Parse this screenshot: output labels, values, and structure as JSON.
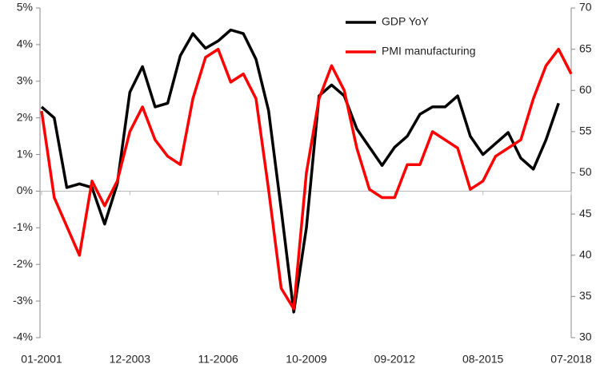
{
  "chart_data": {
    "type": "line",
    "categories": [
      "01-2001",
      null,
      null,
      null,
      null,
      null,
      null,
      "12-2003",
      null,
      null,
      null,
      null,
      null,
      null,
      "11-2006",
      null,
      null,
      null,
      null,
      null,
      null,
      "10-2009",
      null,
      null,
      null,
      null,
      null,
      null,
      "09-2012",
      null,
      null,
      null,
      null,
      null,
      null,
      "08-2015",
      null,
      null,
      null,
      null,
      null,
      null,
      "07-2018"
    ],
    "series": [
      {
        "name": "GDP YoY",
        "color": "#000000",
        "axis": "y",
        "values": [
          2.3,
          2.0,
          0.1,
          0.2,
          0.1,
          -0.9,
          0.2,
          2.7,
          3.4,
          2.3,
          2.4,
          3.7,
          4.3,
          3.9,
          4.1,
          4.4,
          4.3,
          3.6,
          2.2,
          -0.5,
          -3.3,
          -1.0,
          2.6,
          2.9,
          2.6,
          1.7,
          1.2,
          0.7,
          1.2,
          1.5,
          2.1,
          2.3,
          2.3,
          2.6,
          1.5,
          1.0,
          1.3,
          1.6,
          0.9,
          0.6,
          1.4,
          2.4,
          null
        ]
      },
      {
        "name": "PMI manufacturing",
        "color": "#ff0000",
        "axis": "y2",
        "values": [
          57.5,
          47,
          43.5,
          40,
          49,
          46,
          49,
          55,
          58,
          54,
          52,
          51,
          59,
          64,
          65,
          61,
          62,
          59,
          48,
          36,
          33.5,
          50,
          59,
          63,
          60,
          53,
          48,
          47,
          47,
          51,
          51,
          55,
          54,
          53,
          48,
          49,
          52,
          53,
          54,
          59,
          63,
          65,
          62
        ]
      }
    ],
    "ylim": [
      -4,
      5
    ],
    "yticks": [
      {
        "value": -4,
        "label": "-4%"
      },
      {
        "value": -3,
        "label": "-3%"
      },
      {
        "value": -2,
        "label": "-2%"
      },
      {
        "value": -1,
        "label": "-1%"
      },
      {
        "value": 0,
        "label": "0%"
      },
      {
        "value": 1,
        "label": "1%"
      },
      {
        "value": 2,
        "label": "2%"
      },
      {
        "value": 3,
        "label": "3%"
      },
      {
        "value": 4,
        "label": "4%"
      },
      {
        "value": 5,
        "label": "5%"
      }
    ],
    "y2lim": [
      30,
      70
    ],
    "y2ticks": [
      30,
      35,
      40,
      45,
      50,
      55,
      60,
      65,
      70
    ]
  }
}
